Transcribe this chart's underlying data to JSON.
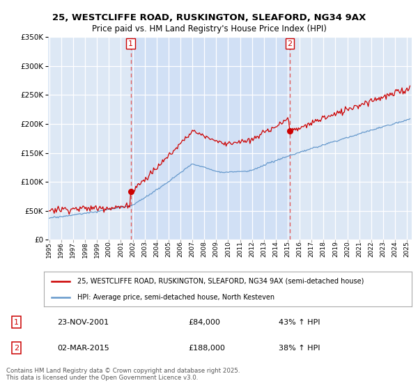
{
  "title_line1": "25, WESTCLIFFE ROAD, RUSKINGTON, SLEAFORD, NG34 9AX",
  "title_line2": "Price paid vs. HM Land Registry's House Price Index (HPI)",
  "legend_label_red": "25, WESTCLIFFE ROAD, RUSKINGTON, SLEAFORD, NG34 9AX (semi-detached house)",
  "legend_label_blue": "HPI: Average price, semi-detached house, North Kesteven",
  "footnote": "Contains HM Land Registry data © Crown copyright and database right 2025.\nThis data is licensed under the Open Government Licence v3.0.",
  "purchase1_date": "23-NOV-2001",
  "purchase1_price": 84000,
  "purchase1_hpi": "43% ↑ HPI",
  "purchase2_date": "02-MAR-2015",
  "purchase2_price": 188000,
  "purchase2_hpi": "38% ↑ HPI",
  "red_color": "#cc0000",
  "blue_color": "#6699cc",
  "vline_color": "#e06060",
  "grid_color": "#cccccc",
  "bg_color": "#dde8f5",
  "shade_color": "#ccddf5",
  "ylim_max": 350000,
  "ylim_min": 0,
  "year_start": 1995,
  "year_end": 2025
}
